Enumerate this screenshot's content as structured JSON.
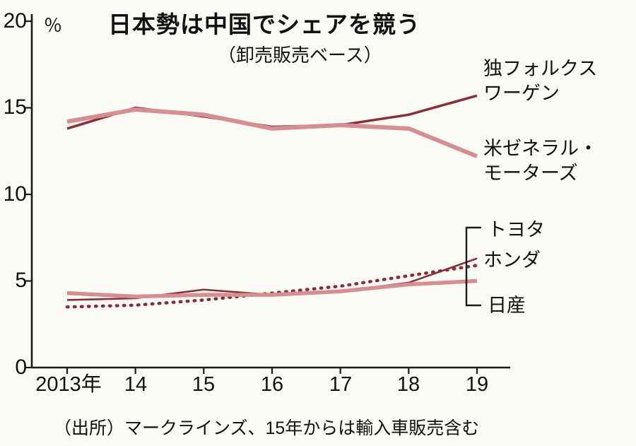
{
  "title": "日本勢は中国でシェアを競う",
  "subtitle": "（卸売販売ベース）",
  "unit_label": "％",
  "source": "（出所）マークラインズ、15年からは輸入車販売含む",
  "colors": {
    "dark_red": "#8b2c38",
    "pink": "#d88d90",
    "axis": "#1a1a1a",
    "background": "#fafbf4"
  },
  "chart_data": {
    "type": "line",
    "title": "日本勢は中国でシェアを競う",
    "subtitle": "（卸売販売ベース）",
    "ylabel": "％",
    "ylim": [
      0,
      20
    ],
    "grid": false,
    "legend_position": "right-annotations",
    "x_labels": [
      "2013年",
      "14",
      "15",
      "16",
      "17",
      "18",
      "19"
    ],
    "y_ticks": [
      0,
      5,
      10,
      15,
      20
    ],
    "y_tick_labels": [
      "0",
      "5",
      "10",
      "15",
      "20"
    ],
    "series": [
      {
        "name": "独フォルクスワーゲン",
        "label_lines": [
          "独フォルクス",
          "ワーゲン"
        ],
        "values": [
          13.8,
          15.0,
          14.5,
          13.9,
          14.0,
          14.6,
          15.7
        ],
        "color": "#8b2c38",
        "style": "solid",
        "width": 3.5
      },
      {
        "name": "米ゼネラル・モーターズ",
        "label_lines": [
          "米ゼネラル・",
          "モーターズ"
        ],
        "values": [
          14.2,
          14.9,
          14.6,
          13.8,
          14.0,
          13.8,
          12.2
        ],
        "color": "#d88d90",
        "style": "solid",
        "width": 6
      },
      {
        "name": "トヨタ",
        "label_lines": [
          "トヨタ"
        ],
        "values": [
          3.9,
          4.0,
          4.5,
          4.2,
          4.4,
          4.9,
          6.3
        ],
        "color": "#8b2c38",
        "style": "solid",
        "width": 2.6
      },
      {
        "name": "ホンダ",
        "label_lines": [
          "ホンダ"
        ],
        "values": [
          3.5,
          3.6,
          3.9,
          4.3,
          4.7,
          5.3,
          5.9
        ],
        "color": "#8b2c38",
        "style": "dotted",
        "width": 4.5
      },
      {
        "name": "日産",
        "label_lines": [
          "日産"
        ],
        "values": [
          4.3,
          4.1,
          4.2,
          4.2,
          4.4,
          4.8,
          5.0
        ],
        "color": "#d88d90",
        "style": "solid",
        "width": 5.5
      }
    ]
  }
}
